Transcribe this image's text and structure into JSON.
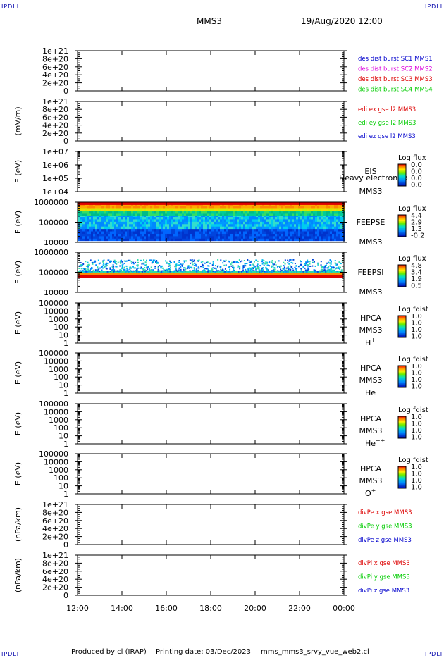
{
  "corners": [
    "IPDLI",
    "IPDLI",
    "IPDLI",
    "IPDLI"
  ],
  "header": {
    "mission": "MMS3",
    "datetime": "19/Aug/2020 12:00"
  },
  "footer": {
    "produced_by": "Produced by cl (IRAP)",
    "printing_date": "Printing date: 03/Dec/2023",
    "filename": "mms_mms3_srvy_vue_web2.cl"
  },
  "colors": {
    "red": "#dd0000",
    "magenta": "#dd00dd",
    "green": "#00cc00",
    "blue": "#0000cc"
  },
  "chart_data": [
    {
      "type": "line",
      "ylabel": "",
      "y_ticks": [
        "1e+21",
        "8e+20",
        "6e+20",
        "4e+20",
        "2e+20",
        "0"
      ],
      "y_values": [
        1e+21,
        8e+20,
        6e+20,
        4e+20,
        2e+20,
        0
      ],
      "ylim": [
        0,
        1e+21
      ],
      "series": [
        {
          "name": "des dist burst SC1 MMS1",
          "color": "#0000cc"
        },
        {
          "name": "des dist burst SC2 MMS2",
          "color": "#dd00dd"
        },
        {
          "name": "des dist burst SC3 MMS3",
          "color": "#dd0000"
        },
        {
          "name": "des dist burst SC4 MMS4",
          "color": "#00cc00"
        }
      ]
    },
    {
      "type": "line",
      "ylabel": "(mV/m)",
      "y_ticks": [
        "1e+21",
        "8e+20",
        "6e+20",
        "4e+20",
        "2e+20",
        "0"
      ],
      "y_values": [
        1e+21,
        8e+20,
        6e+20,
        4e+20,
        2e+20,
        0
      ],
      "ylim": [
        0,
        1e+21
      ],
      "series": [
        {
          "name": "edi ex gse l2 MMS3",
          "color": "#dd0000"
        },
        {
          "name": "edi ey gse l2 MMS3",
          "color": "#00cc00"
        },
        {
          "name": "edi ez gse l2 MMS3",
          "color": "#0000cc"
        }
      ]
    },
    {
      "type": "heatmap",
      "ylabel": "E (eV)",
      "y_ticks": [
        "1e+07",
        "1e+06",
        "1e+05",
        "1e+04"
      ],
      "y_values": [
        10000000.0,
        1000000.0,
        100000.0,
        10000.0
      ],
      "ylim": [
        10000.0,
        10000000.0
      ],
      "yscale": "log",
      "instrument": "EIS",
      "spacecraft": "MMS3",
      "overlay_text": "Heavy electron to",
      "colorbar": {
        "label": "Log flux",
        "ticks": [
          "0.0",
          "0.0",
          "0.0",
          "0.0"
        ]
      },
      "spectrogram": "none"
    },
    {
      "type": "heatmap",
      "ylabel": "E (eV)",
      "y_ticks": [
        "1000000",
        "100000",
        "10000"
      ],
      "y_values": [
        1000000.0,
        100000.0,
        10000.0
      ],
      "ylim": [
        10000.0,
        1000000.0
      ],
      "yscale": "log",
      "instrument": "FEEPSE",
      "spacecraft": "MMS3",
      "colorbar": {
        "label": "Log flux",
        "ticks": [
          "4.4",
          "2.9",
          "1.3",
          "-0.2"
        ]
      },
      "spectrogram": "dense"
    },
    {
      "type": "heatmap",
      "ylabel": "E (eV)",
      "y_ticks": [
        "1000000",
        "100000",
        "10000"
      ],
      "y_values": [
        1000000.0,
        100000.0,
        10000.0
      ],
      "ylim": [
        10000.0,
        1000000.0
      ],
      "yscale": "log",
      "instrument": "FEEPSI",
      "spacecraft": "MMS3",
      "colorbar": {
        "label": "Log flux",
        "ticks": [
          "4.8",
          "3.4",
          "1.9",
          "0.5"
        ]
      },
      "spectrogram": "sparse"
    },
    {
      "type": "heatmap",
      "ylabel": "E (eV)",
      "y_ticks": [
        "100000",
        "10000",
        "1000",
        "100",
        "10",
        "1"
      ],
      "y_values": [
        100000.0,
        10000.0,
        1000.0,
        100,
        10,
        1
      ],
      "ylim": [
        1,
        100000.0
      ],
      "yscale": "log",
      "instrument": "HPCA",
      "spacecraft": "MMS3",
      "species": "H",
      "species_sup": "+",
      "colorbar": {
        "label": "Log fdist",
        "ticks": [
          "1.0",
          "1.0",
          "1.0",
          "1.0"
        ]
      },
      "spectrogram": "none"
    },
    {
      "type": "heatmap",
      "ylabel": "E (eV)",
      "y_ticks": [
        "100000",
        "10000",
        "1000",
        "100",
        "10",
        "1"
      ],
      "y_values": [
        100000.0,
        10000.0,
        1000.0,
        100,
        10,
        1
      ],
      "ylim": [
        1,
        100000.0
      ],
      "yscale": "log",
      "instrument": "HPCA",
      "spacecraft": "MMS3",
      "species": "He",
      "species_sup": "+",
      "colorbar": {
        "label": "Log fdist",
        "ticks": [
          "1.0",
          "1.0",
          "1.0",
          "1.0"
        ]
      },
      "spectrogram": "none"
    },
    {
      "type": "heatmap",
      "ylabel": "E (eV)",
      "y_ticks": [
        "100000",
        "10000",
        "1000",
        "100",
        "10",
        "1"
      ],
      "y_values": [
        100000.0,
        10000.0,
        1000.0,
        100,
        10,
        1
      ],
      "ylim": [
        1,
        100000.0
      ],
      "yscale": "log",
      "instrument": "HPCA",
      "spacecraft": "MMS3",
      "species": "He",
      "species_sup": "++",
      "colorbar": {
        "label": "Log fdist",
        "ticks": [
          "1.0",
          "1.0",
          "1.0",
          "1.0"
        ]
      },
      "spectrogram": "none"
    },
    {
      "type": "heatmap",
      "ylabel": "E (eV)",
      "y_ticks": [
        "100000",
        "10000",
        "1000",
        "100",
        "10",
        "1"
      ],
      "y_values": [
        100000.0,
        10000.0,
        1000.0,
        100,
        10,
        1
      ],
      "ylim": [
        1,
        100000.0
      ],
      "yscale": "log",
      "instrument": "HPCA",
      "spacecraft": "MMS3",
      "species": "O",
      "species_sup": "+",
      "colorbar": {
        "label": "Log fdist",
        "ticks": [
          "1.0",
          "1.0",
          "1.0",
          "1.0"
        ]
      },
      "spectrogram": "none"
    },
    {
      "type": "line",
      "ylabel": "(nPa/km)",
      "y_ticks": [
        "1e+21",
        "8e+20",
        "6e+20",
        "4e+20",
        "2e+20",
        "0"
      ],
      "y_values": [
        1e+21,
        8e+20,
        6e+20,
        4e+20,
        2e+20,
        0
      ],
      "ylim": [
        0,
        1e+21
      ],
      "series": [
        {
          "name": "divPe x gse MMS3",
          "color": "#dd0000"
        },
        {
          "name": "divPe y gse MMS3",
          "color": "#00cc00"
        },
        {
          "name": "divPe z gse MMS3",
          "color": "#0000cc"
        }
      ]
    },
    {
      "type": "line",
      "ylabel": "(nPa/km)",
      "y_ticks": [
        "1e+21",
        "8e+20",
        "6e+20",
        "4e+20",
        "2e+20",
        "0"
      ],
      "y_values": [
        1e+21,
        8e+20,
        6e+20,
        4e+20,
        2e+20,
        0
      ],
      "ylim": [
        0,
        1e+21
      ],
      "series": [
        {
          "name": "divPi x gse MMS3",
          "color": "#dd0000"
        },
        {
          "name": "divPi y gse MMS3",
          "color": "#00cc00"
        },
        {
          "name": "divPi z gse MMS3",
          "color": "#0000cc"
        }
      ]
    }
  ],
  "xaxis": {
    "ticks": [
      "12:00",
      "14:00",
      "16:00",
      "18:00",
      "20:00",
      "22:00",
      "00:00"
    ],
    "range": [
      "2020-08-19 12:00",
      "2020-08-20 00:00"
    ]
  }
}
